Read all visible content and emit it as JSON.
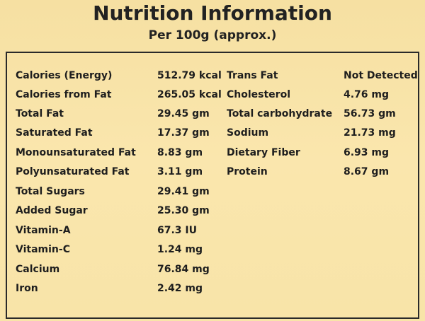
{
  "header": {
    "title": "Nutrition Information",
    "subtitle": "Per 100g (approx.)"
  },
  "left_items": [
    {
      "label": "Calories (Energy)",
      "value": "512.79 kcal"
    },
    {
      "label": "Calories from Fat",
      "value": "265.05 kcal"
    },
    {
      "label": "Total Fat",
      "value": "29.45 gm"
    },
    {
      "label": "Saturated Fat",
      "value": "17.37 gm"
    },
    {
      "label": "Monounsaturated Fat",
      "value": "8.83 gm"
    },
    {
      "label": "Polyunsaturated Fat",
      "value": "3.11 gm"
    },
    {
      "label": "Total Sugars",
      "value": "29.41 gm"
    },
    {
      "label": "Added Sugar",
      "value": "25.30 gm"
    },
    {
      "label": "Vitamin-A",
      "value": "67.3 IU"
    },
    {
      "label": "Vitamin-C",
      "value": "1.24 mg"
    },
    {
      "label": "Calcium",
      "value": "76.84 mg"
    },
    {
      "label": "Iron",
      "value": "2.42 mg"
    }
  ],
  "right_items": [
    {
      "label": "Trans Fat",
      "value": "Not Detected"
    },
    {
      "label": "Cholesterol",
      "value": "4.76 mg"
    },
    {
      "label": "Total carbohydrate",
      "value": "56.73 gm"
    },
    {
      "label": "Sodium",
      "value": "21.73 mg"
    },
    {
      "label": "Dietary Fiber",
      "value": "6.93 mg"
    },
    {
      "label": "Protein",
      "value": "8.67 gm"
    }
  ]
}
